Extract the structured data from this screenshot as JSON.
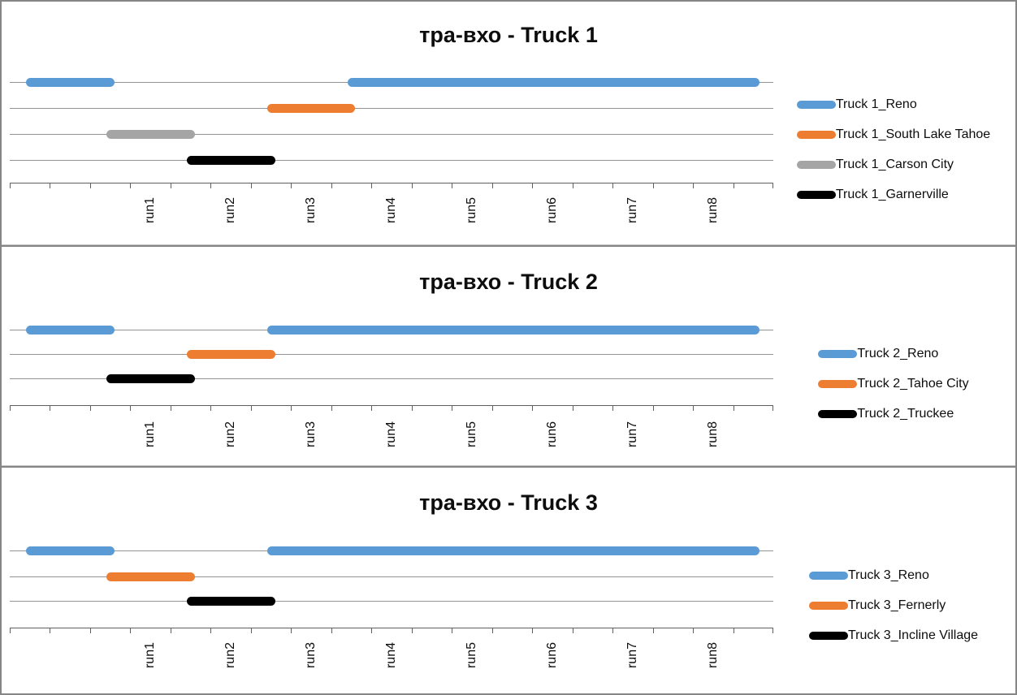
{
  "style": {
    "background": "#ffffff",
    "panel_border_color": "#868686",
    "gridline_color": "#949494",
    "axis_color": "#5f5f5f",
    "text_color": "#0d0d0d",
    "series_palette": {
      "blue": "#5B9BD5",
      "orange": "#ED7D31",
      "gray": "#A5A5A5",
      "black": "#000000"
    }
  },
  "x_axis": {
    "tick_labels": [
      "run1",
      "run2",
      "run3",
      "run4",
      "run5",
      "run6",
      "run7",
      "run8"
    ],
    "label_slots": [
      3,
      5,
      7,
      9,
      11,
      13,
      15,
      17
    ],
    "slot_count": 19,
    "tick_count": 20
  },
  "chart_data": [
    {
      "type": "gantt",
      "title": "тра-вхо - Truck 1",
      "x_tick_labels": [
        "run1",
        "run2",
        "run3",
        "run4",
        "run5",
        "run6",
        "run7",
        "run8"
      ],
      "legend_position": "right",
      "series": [
        {
          "name": "Truck 1_Reno",
          "color": "#5B9BD5",
          "segments": [
            [
              0.4,
              2.6
            ],
            [
              8.4,
              18.65
            ]
          ]
        },
        {
          "name": "Truck 1_South Lake Tahoe",
          "color": "#ED7D31",
          "segments": [
            [
              6.4,
              8.6
            ]
          ]
        },
        {
          "name": "Truck 1_Carson City",
          "color": "#A5A5A5",
          "segments": [
            [
              2.4,
              4.6
            ]
          ]
        },
        {
          "name": "Truck 1_Garnerville",
          "color": "#000000",
          "segments": [
            [
              4.4,
              6.6
            ]
          ]
        }
      ]
    },
    {
      "type": "gantt",
      "title": "тра-вхо - Truck 2",
      "x_tick_labels": [
        "run1",
        "run2",
        "run3",
        "run4",
        "run5",
        "run6",
        "run7",
        "run8"
      ],
      "legend_position": "right",
      "series": [
        {
          "name": "Truck 2_Reno",
          "color": "#5B9BD5",
          "segments": [
            [
              0.4,
              2.6
            ],
            [
              6.4,
              18.65
            ]
          ]
        },
        {
          "name": "Truck 2_Tahoe City",
          "color": "#ED7D31",
          "segments": [
            [
              4.4,
              6.6
            ]
          ]
        },
        {
          "name": "Truck 2_Truckee",
          "color": "#000000",
          "segments": [
            [
              2.4,
              4.6
            ]
          ]
        }
      ]
    },
    {
      "type": "gantt",
      "title": "тра-вхо - Truck 3",
      "x_tick_labels": [
        "run1",
        "run2",
        "run3",
        "run4",
        "run5",
        "run6",
        "run7",
        "run8"
      ],
      "legend_position": "right",
      "series": [
        {
          "name": "Truck 3_Reno",
          "color": "#5B9BD5",
          "segments": [
            [
              0.4,
              2.6
            ],
            [
              6.4,
              18.65
            ]
          ]
        },
        {
          "name": "Truck 3_Fernerly",
          "color": "#ED7D31",
          "segments": [
            [
              2.4,
              4.6
            ]
          ]
        },
        {
          "name": "Truck 3_Incline Village",
          "color": "#000000",
          "segments": [
            [
              4.4,
              6.6
            ]
          ]
        }
      ]
    }
  ]
}
